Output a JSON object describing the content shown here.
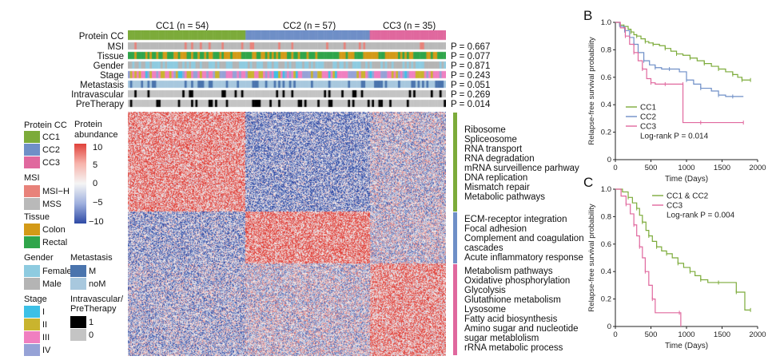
{
  "panel_labels": {
    "b": "B",
    "c": "C"
  },
  "header": {
    "cc1": "CC1 (n = 54)",
    "cc2": "CC2 (n = 57)",
    "cc3": "CC3 (n = 35)"
  },
  "tracks": [
    {
      "label": "Protein CC",
      "p": ""
    },
    {
      "label": "MSI",
      "p": "P = 0.667"
    },
    {
      "label": "Tissue",
      "p": "P = 0.077"
    },
    {
      "label": "Gender",
      "p": "P = 0.871"
    },
    {
      "label": "Stage",
      "p": "P = 0.243"
    },
    {
      "label": "Metastasis",
      "p": "P = 0.051"
    },
    {
      "label": "Intravascular",
      "p": "P = 0.269"
    },
    {
      "label": "PreTherapy",
      "p": "P = 0.014"
    }
  ],
  "legend": {
    "protein_cc_title": "Protein CC",
    "cc_items": [
      "CC1",
      "CC2",
      "CC3"
    ],
    "abundance_title": "Protein abundance",
    "abundance_ticks": [
      "10",
      "5",
      "0",
      "−5",
      "−10"
    ],
    "msi_title": "MSI",
    "msi_items": [
      "MSI−H",
      "MSS"
    ],
    "tissue_title": "Tissue",
    "tissue_items": [
      "Colon",
      "Rectal"
    ],
    "gender_title": "Gender",
    "gender_items": [
      "Female",
      "Male"
    ],
    "metastasis_title": "Metastasis",
    "metastasis_items": [
      "M",
      "noM"
    ],
    "stage_title": "Stage",
    "stage_items": [
      "I",
      "II",
      "III",
      "IV"
    ],
    "iv_title_1": "Intravascular/",
    "iv_title_2": "PreTherapy",
    "iv_items": [
      "1",
      "0"
    ]
  },
  "colors": {
    "cc1": "#7cab3a",
    "cc2": "#6f8fc7",
    "cc3": "#e0689e",
    "msi_h": "#e8827a",
    "mss": "#b9b9b9",
    "colon": "#d39a17",
    "rectal": "#2fa54a",
    "female": "#8ecbe0",
    "male": "#b4b4b4",
    "met_m": "#4a74ad",
    "met_nom": "#a8c8de",
    "stage_1": "#3cc0e6",
    "stage_2": "#c9b42e",
    "stage_3": "#f07fc0",
    "stage_4": "#96a2d6",
    "iv_1": "#000000",
    "iv_0": "#c4c4c4",
    "heat_high": "#e0413a",
    "heat_mid": "#f5f5f5",
    "heat_low": "#2e4aa5"
  },
  "pathways": {
    "cc1": [
      "Ribosome",
      "Spliceosome",
      "RNA transport",
      "RNA degradation",
      "mRNA surveillence parhway",
      "DNA replication",
      "Mismatch repair",
      "Metabolic pathways"
    ],
    "cc2": [
      "ECM-receptor integration",
      "Focal adhesion",
      "Complement and coagulation",
      "cascades",
      "Acute inflammatory response"
    ],
    "cc3": [
      "Metabolism pathways",
      "Oxidative phosphorylation",
      "Glycolysis",
      "Glutathione metabolism",
      "Lysosome",
      "Fatty acid biosynthesis",
      "Amino sugar and nucleotide",
      "sugar metablolism",
      "rRNA metabolic process"
    ]
  },
  "chart_data": [
    {
      "type": "line",
      "panel": "B",
      "xlabel": "Time (Days)",
      "ylabel": "Relapse-free survival probability",
      "xlim": [
        0,
        2000
      ],
      "ylim": [
        0,
        1.0
      ],
      "xticks": [
        "0",
        "500",
        "1000",
        "1500",
        "2000"
      ],
      "yticks": [
        "0",
        "0.2",
        "0.4",
        "0.6",
        "0.8",
        "1.0"
      ],
      "legend_title": "Log-rank P = 0.014",
      "legend_items": [
        "CC1",
        "CC2",
        "CC3"
      ],
      "series": [
        {
          "name": "CC1",
          "color": "#7cab3a",
          "points": [
            [
              0,
              1.0
            ],
            [
              60,
              0.98
            ],
            [
              120,
              0.97
            ],
            [
              180,
              0.95
            ],
            [
              220,
              0.93
            ],
            [
              260,
              0.91
            ],
            [
              300,
              0.9
            ],
            [
              360,
              0.88
            ],
            [
              420,
              0.86
            ],
            [
              470,
              0.85
            ],
            [
              530,
              0.84
            ],
            [
              620,
              0.83
            ],
            [
              700,
              0.81
            ],
            [
              780,
              0.79
            ],
            [
              860,
              0.77
            ],
            [
              950,
              0.76
            ],
            [
              1050,
              0.74
            ],
            [
              1150,
              0.72
            ],
            [
              1250,
              0.7
            ],
            [
              1350,
              0.68
            ],
            [
              1450,
              0.66
            ],
            [
              1550,
              0.64
            ],
            [
              1650,
              0.62
            ],
            [
              1720,
              0.6
            ],
            [
              1780,
              0.58
            ],
            [
              1850,
              0.58
            ],
            [
              1900,
              0.58
            ]
          ]
        },
        {
          "name": "CC2",
          "color": "#6f8fc7",
          "points": [
            [
              0,
              1.0
            ],
            [
              60,
              0.97
            ],
            [
              130,
              0.94
            ],
            [
              200,
              0.89
            ],
            [
              260,
              0.84
            ],
            [
              320,
              0.78
            ],
            [
              400,
              0.72
            ],
            [
              480,
              0.69
            ],
            [
              560,
              0.67
            ],
            [
              650,
              0.66
            ],
            [
              760,
              0.66
            ],
            [
              900,
              0.64
            ],
            [
              1000,
              0.58
            ],
            [
              1100,
              0.55
            ],
            [
              1200,
              0.52
            ],
            [
              1350,
              0.5
            ],
            [
              1450,
              0.47
            ],
            [
              1550,
              0.46
            ],
            [
              1650,
              0.46
            ],
            [
              1800,
              0.46
            ]
          ]
        },
        {
          "name": "CC3",
          "color": "#e0689e",
          "points": [
            [
              0,
              1.0
            ],
            [
              70,
              0.96
            ],
            [
              140,
              0.9
            ],
            [
              200,
              0.84
            ],
            [
              260,
              0.78
            ],
            [
              320,
              0.72
            ],
            [
              380,
              0.66
            ],
            [
              440,
              0.59
            ],
            [
              500,
              0.56
            ],
            [
              560,
              0.55
            ],
            [
              700,
              0.55
            ],
            [
              800,
              0.55
            ],
            [
              950,
              0.55
            ],
            [
              950,
              0.27
            ],
            [
              1200,
              0.27
            ],
            [
              1500,
              0.27
            ],
            [
              1800,
              0.27
            ]
          ]
        }
      ]
    },
    {
      "type": "line",
      "panel": "C",
      "xlabel": "Time (Days)",
      "ylabel": "Relapse-free survival probability",
      "xlim": [
        0,
        2000
      ],
      "ylim": [
        0,
        1.0
      ],
      "xticks": [
        "0",
        "500",
        "1000",
        "1500",
        "2000"
      ],
      "yticks": [
        "0",
        "0.2",
        "0.4",
        "0.6",
        "0.8",
        "1.0"
      ],
      "legend_title": "Log-rank P = 0.004",
      "legend_items": [
        "CC1 & CC2",
        "CC3"
      ],
      "series": [
        {
          "name": "CC1 & CC2",
          "color": "#7cab3a",
          "points": [
            [
              0,
              1.0
            ],
            [
              100,
              0.98
            ],
            [
              180,
              0.94
            ],
            [
              240,
              0.9
            ],
            [
              300,
              0.86
            ],
            [
              340,
              0.81
            ],
            [
              380,
              0.76
            ],
            [
              430,
              0.7
            ],
            [
              470,
              0.66
            ],
            [
              520,
              0.62
            ],
            [
              580,
              0.58
            ],
            [
              650,
              0.55
            ],
            [
              720,
              0.53
            ],
            [
              800,
              0.5
            ],
            [
              880,
              0.46
            ],
            [
              960,
              0.43
            ],
            [
              1050,
              0.4
            ],
            [
              1120,
              0.37
            ],
            [
              1200,
              0.34
            ],
            [
              1300,
              0.32
            ],
            [
              1450,
              0.32
            ],
            [
              1600,
              0.32
            ],
            [
              1700,
              0.25
            ],
            [
              1820,
              0.12
            ],
            [
              1900,
              0.12
            ]
          ]
        },
        {
          "name": "CC3",
          "color": "#e0689e",
          "points": [
            [
              0,
              1.0
            ],
            [
              80,
              0.95
            ],
            [
              150,
              0.89
            ],
            [
              210,
              0.82
            ],
            [
              260,
              0.74
            ],
            [
              300,
              0.66
            ],
            [
              340,
              0.58
            ],
            [
              380,
              0.5
            ],
            [
              420,
              0.4
            ],
            [
              470,
              0.3
            ],
            [
              520,
              0.2
            ],
            [
              560,
              0.1
            ],
            [
              900,
              0.1
            ],
            [
              920,
              0.0
            ]
          ]
        }
      ]
    }
  ]
}
